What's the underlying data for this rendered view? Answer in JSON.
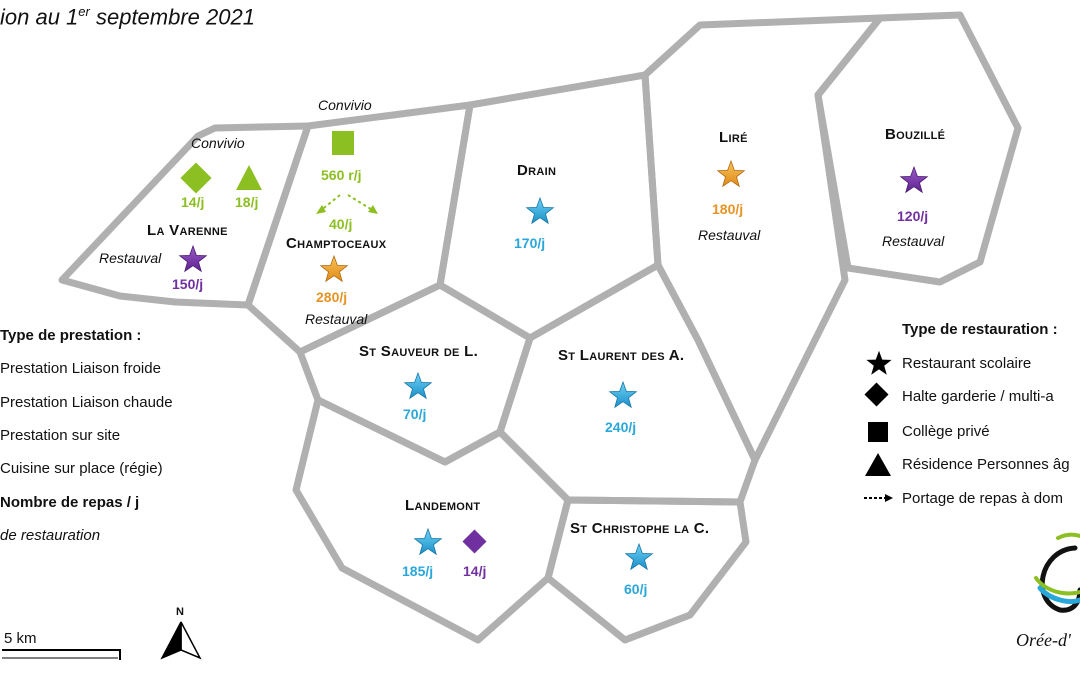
{
  "title": {
    "text": "ion au 1",
    "sup": "er",
    "rest": " septembre 2021"
  },
  "communes": {
    "la_varenne": {
      "name": "La Varenne",
      "count": "150/j",
      "provider": "Restauval"
    },
    "la_varenne_convivio": {
      "provider": "Convivio",
      "count_diamond": "14/j",
      "count_triangle": "18/j"
    },
    "champtoceaux": {
      "name": "Champtoceaux",
      "count": "280/j",
      "provider": "Restauval"
    },
    "champtoceaux_convivio": {
      "provider": "Convivio",
      "count_college": "560 r/j",
      "count_portage": "40/j"
    },
    "drain": {
      "name": "Drain",
      "count": "170/j"
    },
    "lire": {
      "name": "Liré",
      "count": "180/j",
      "provider": "Restauval"
    },
    "bouzille": {
      "name": "Bouzillé",
      "count": "120/j",
      "provider": "Restauval"
    },
    "st_sauveur": {
      "name": "St Sauveur de L.",
      "count": "70/j"
    },
    "st_laurent": {
      "name": "St Laurent des A.",
      "count": "240/j"
    },
    "landemont": {
      "name": "Landemont",
      "count_star": "185/j",
      "count_diamond": "14/j"
    },
    "st_christophe": {
      "name": "St Christophe la C.",
      "count": "60/j"
    }
  },
  "legend_left": {
    "heading": "Type de prestation :",
    "items": [
      "Prestation Liaison froide",
      "Prestation Liaison chaude",
      "Prestation sur site",
      "Cuisine sur place (régie)"
    ],
    "meals": "Nombre de repas / j",
    "provider": "de restauration"
  },
  "legend_right": {
    "heading": "Type de restauration :",
    "items": [
      "Restaurant scolaire",
      "Halte garderie / multi-a",
      "Collège privé",
      "Résidence Personnes âg",
      "Portage de repas à dom"
    ]
  },
  "scale": {
    "label": "5 km"
  },
  "north": {
    "label": "N"
  },
  "logo": {
    "text": "Orée-d'"
  },
  "colors": {
    "cold": "#2aa7d9",
    "hot": "#7030a0",
    "site": "#e69426",
    "regie": "#8cbf22",
    "border": "#b0b0b0"
  },
  "icons": [
    "star-icon",
    "diamond-icon",
    "square-icon",
    "triangle-icon",
    "dashed-arrow-icon",
    "north-arrow-icon"
  ]
}
